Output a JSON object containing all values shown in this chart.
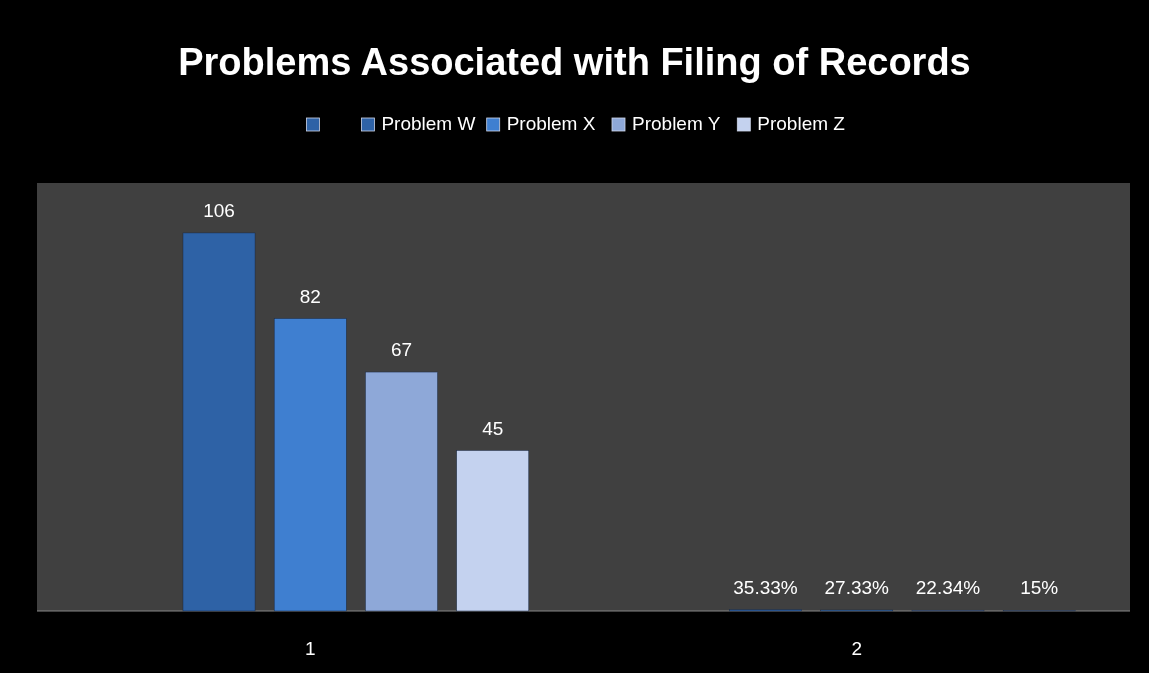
{
  "chart_data": {
    "type": "bar",
    "title": "Problems Associated with Filing of Records",
    "categories": [
      "1",
      "2"
    ],
    "series": [
      {
        "color": "#2e62a6",
        "values": [
          null,
          null
        ]
      },
      {
        "name": "Problem W",
        "color": "#2e62a6",
        "values": [
          106,
          0.3533
        ],
        "value_labels": [
          "106",
          "35.33%"
        ]
      },
      {
        "name": "Problem X",
        "color": "#3f7fd0",
        "values": [
          82,
          0.2733
        ],
        "value_labels": [
          "82",
          "27.33%"
        ]
      },
      {
        "name": "Problem Y",
        "color": "#8ea8d8",
        "values": [
          67,
          0.2234
        ],
        "value_labels": [
          "67",
          "22.34%"
        ]
      },
      {
        "name": "Problem Z",
        "color": "#c4d2ef",
        "values": [
          45,
          0.15
        ],
        "value_labels": [
          "45",
          "15%"
        ]
      }
    ],
    "ylim": [
      0,
      120
    ],
    "legend": "top",
    "grid": false
  }
}
